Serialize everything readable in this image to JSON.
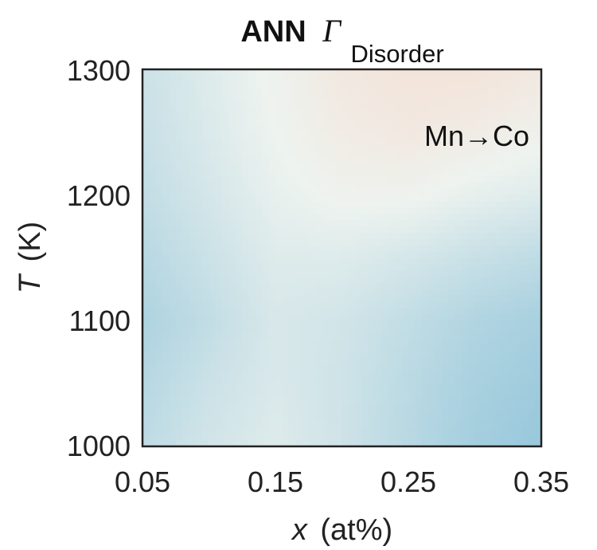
{
  "chart_data": {
    "type": "heatmap",
    "title": {
      "prefix": "ANN",
      "symbol": "Γ",
      "subscript": "Disorder"
    },
    "annotation": "Mn→Co",
    "xlabel": {
      "symbol": "x",
      "unit": "(at%)"
    },
    "ylabel": {
      "symbol": "T",
      "unit": "(K)"
    },
    "xlim": [
      0.05,
      0.35
    ],
    "ylim": [
      1000,
      1300
    ],
    "x_ticks": [
      "0.05",
      "0.15",
      "0.25",
      "0.35"
    ],
    "y_ticks": [
      "1000",
      "1100",
      "1200",
      "1300"
    ],
    "grid": false,
    "colormap": {
      "low": "#8ec3d9",
      "mid": "#eef3ef",
      "high": "#f8d5c6"
    },
    "x": [
      0.05,
      0.1,
      0.15,
      0.2,
      0.25,
      0.3,
      0.35
    ],
    "y": [
      1000,
      1050,
      1100,
      1150,
      1200,
      1250,
      1300
    ],
    "z": [
      [
        0.3,
        0.42,
        0.5,
        0.4,
        0.26,
        0.14,
        0.06
      ],
      [
        0.25,
        0.38,
        0.47,
        0.4,
        0.28,
        0.17,
        0.1
      ],
      [
        0.2,
        0.32,
        0.46,
        0.42,
        0.32,
        0.22,
        0.16
      ],
      [
        0.26,
        0.38,
        0.5,
        0.5,
        0.44,
        0.36,
        0.3
      ],
      [
        0.32,
        0.44,
        0.56,
        0.62,
        0.62,
        0.55,
        0.5
      ],
      [
        0.36,
        0.48,
        0.6,
        0.7,
        0.74,
        0.7,
        0.64
      ],
      [
        0.38,
        0.5,
        0.62,
        0.74,
        0.8,
        0.8,
        0.74
      ]
    ]
  }
}
